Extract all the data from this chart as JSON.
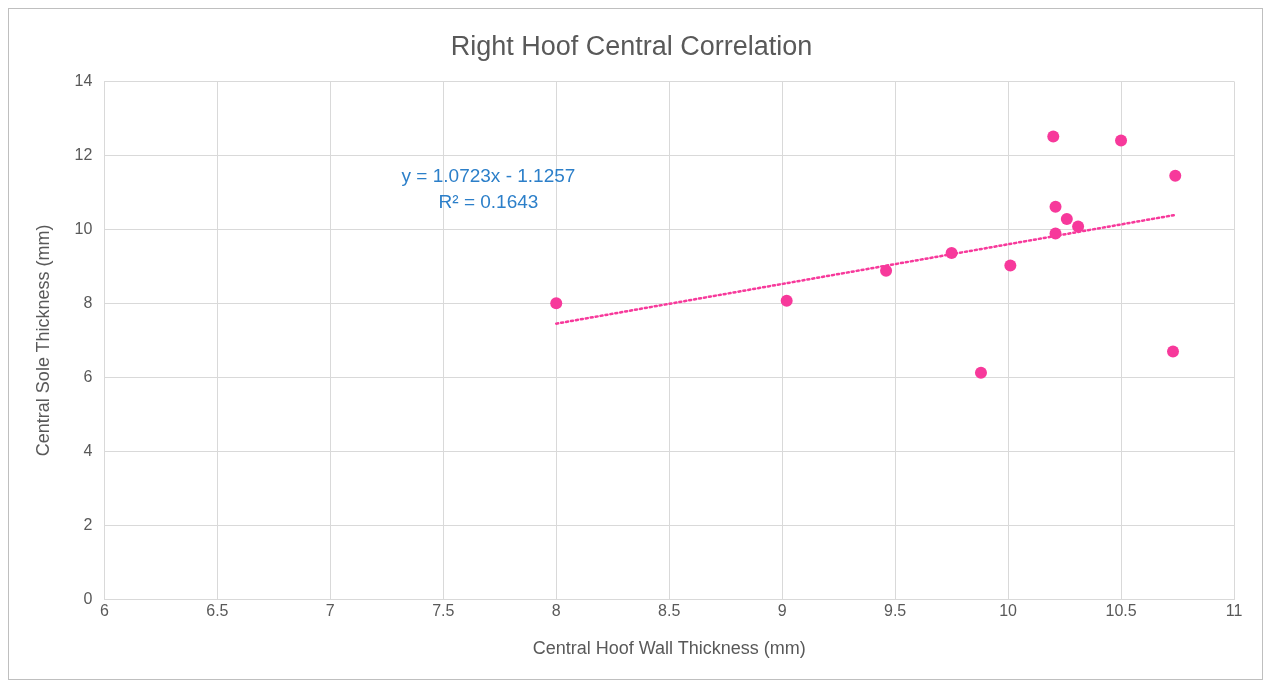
{
  "chart_data": {
    "type": "scatter",
    "title": "Right Hoof Central Correlation",
    "xlabel": "Central Hoof Wall Thickness (mm)",
    "ylabel": "Central Sole Thickness (mm)",
    "xlim": [
      6,
      11
    ],
    "xticks": [
      6,
      6.5,
      7,
      7.5,
      8,
      8.5,
      9,
      9.5,
      10,
      10.5,
      11
    ],
    "ylim": [
      0,
      14
    ],
    "yticks": [
      0,
      2,
      4,
      6,
      8,
      10,
      12,
      14
    ],
    "grid": true,
    "legend": false,
    "annotations": [
      "y = 1.0723x - 1.1257",
      "R² = 0.1643"
    ],
    "series": [
      {
        "type": "scatter",
        "color": "#f7399b",
        "marker": "circle",
        "x": [
          8.0,
          9.02,
          9.46,
          9.75,
          9.88,
          10.01,
          10.2,
          10.21,
          10.21,
          10.26,
          10.31,
          10.5,
          10.73,
          10.74
        ],
        "values": [
          8.0,
          8.07,
          8.88,
          9.36,
          6.12,
          9.02,
          12.51,
          9.89,
          10.61,
          10.28,
          10.08,
          12.4,
          6.7,
          11.45
        ]
      },
      {
        "type": "line",
        "color": "#f7399b",
        "marker": "none",
        "line_style": "dotted",
        "x": [
          8.0,
          10.74
        ],
        "values": [
          7.45,
          10.39
        ]
      }
    ]
  }
}
